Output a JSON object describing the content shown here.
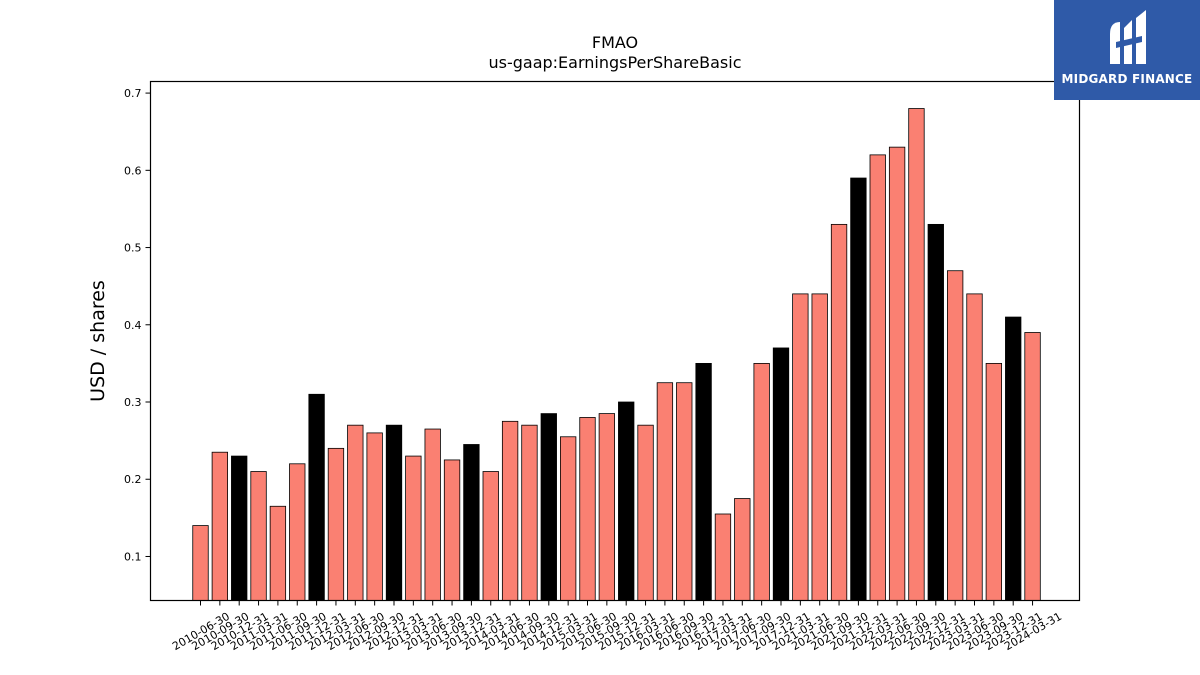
{
  "brand": {
    "name": "MIDGARD FINANCE",
    "background": "#2f5aa8"
  },
  "chart_data": {
    "type": "bar",
    "title": "FMAO",
    "subtitle": "us-gaap:EarningsPerShareBasic",
    "xlabel": "",
    "ylabel": "USD / shares",
    "ylim": [
      0.043,
      0.715
    ],
    "yticks": [
      0.1,
      0.2,
      0.3,
      0.4,
      0.5,
      0.6,
      0.7
    ],
    "grid": false,
    "colors": {
      "quarter": "#fa8072",
      "year_end": "#000000",
      "edge": "#000000"
    },
    "categories": [
      "2010-06-30",
      "2010-09-30",
      "2010-12-31",
      "2011-03-31",
      "2011-06-30",
      "2011-09-30",
      "2011-12-31",
      "2012-03-31",
      "2012-06-30",
      "2012-09-30",
      "2012-12-31",
      "2013-03-31",
      "2013-06-30",
      "2013-09-30",
      "2013-12-31",
      "2014-03-31",
      "2014-06-30",
      "2014-09-30",
      "2014-12-31",
      "2015-03-31",
      "2015-06-30",
      "2015-09-30",
      "2015-12-31",
      "2016-03-31",
      "2016-06-30",
      "2016-09-30",
      "2016-12-31",
      "2017-03-31",
      "2017-06-30",
      "2017-09-30",
      "2017-12-31",
      "2021-03-31",
      "2021-06-30",
      "2021-09-30",
      "2021-12-31",
      "2022-03-31",
      "2022-06-30",
      "2022-09-30",
      "2022-12-31",
      "2023-03-31",
      "2023-06-30",
      "2023-09-30",
      "2023-12-31",
      "2024-03-31"
    ],
    "values": [
      0.14,
      0.235,
      0.23,
      0.21,
      0.165,
      0.22,
      0.31,
      0.24,
      0.27,
      0.26,
      0.27,
      0.23,
      0.265,
      0.225,
      0.245,
      0.21,
      0.275,
      0.27,
      0.285,
      0.255,
      0.28,
      0.285,
      0.3,
      0.27,
      0.325,
      0.325,
      0.35,
      0.155,
      0.175,
      0.35,
      0.37,
      0.44,
      0.44,
      0.53,
      0.59,
      0.62,
      0.63,
      0.68,
      0.53,
      0.47,
      0.44,
      0.35,
      0.41,
      0.39
    ],
    "highlight": [
      false,
      false,
      true,
      false,
      false,
      false,
      true,
      false,
      false,
      false,
      true,
      false,
      false,
      false,
      true,
      false,
      false,
      false,
      true,
      false,
      false,
      false,
      true,
      false,
      false,
      false,
      true,
      false,
      false,
      false,
      true,
      false,
      false,
      false,
      true,
      false,
      false,
      false,
      true,
      false,
      false,
      false,
      true,
      false
    ]
  }
}
